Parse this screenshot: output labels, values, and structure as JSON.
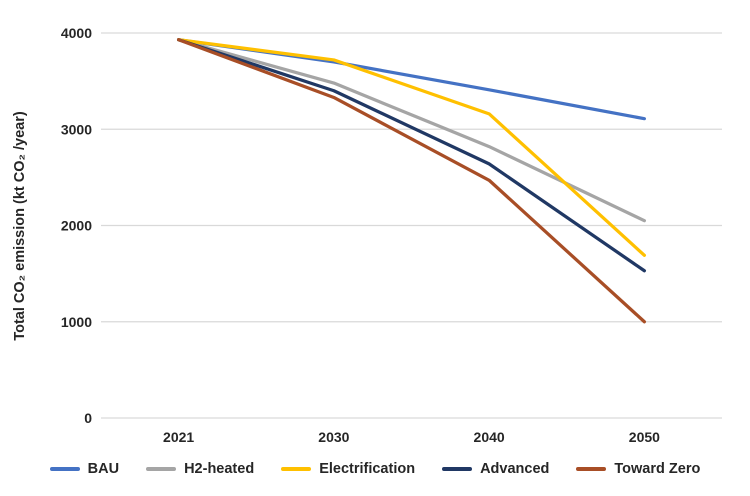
{
  "chart_data": {
    "type": "line",
    "title": "",
    "xlabel": "",
    "ylabel": "Total CO₂ emission (kt CO₂ /year)",
    "x_categories": [
      "2021",
      "2030",
      "2040",
      "2050"
    ],
    "y_ticks": [
      0,
      1000,
      2000,
      3000,
      4000
    ],
    "ylim": [
      0,
      4000
    ],
    "grid": "horizontal",
    "gridline_color": "#d9d9d9",
    "text_color": "#262626",
    "legend_position": "bottom",
    "series": [
      {
        "name": "BAU",
        "color": "#4472C4",
        "values": [
          3930,
          3700,
          3410,
          3110
        ]
      },
      {
        "name": "H2-heated",
        "color": "#A5A5A5",
        "values": [
          3930,
          3480,
          2820,
          2050
        ]
      },
      {
        "name": "Electrification",
        "color": "#FFC000",
        "values": [
          3930,
          3720,
          3160,
          1690
        ]
      },
      {
        "name": "Advanced",
        "color": "#203864",
        "values": [
          3930,
          3400,
          2640,
          1530
        ]
      },
      {
        "name": "Toward Zero",
        "color": "#A84E26",
        "values": [
          3930,
          3330,
          2470,
          1000
        ]
      }
    ]
  }
}
